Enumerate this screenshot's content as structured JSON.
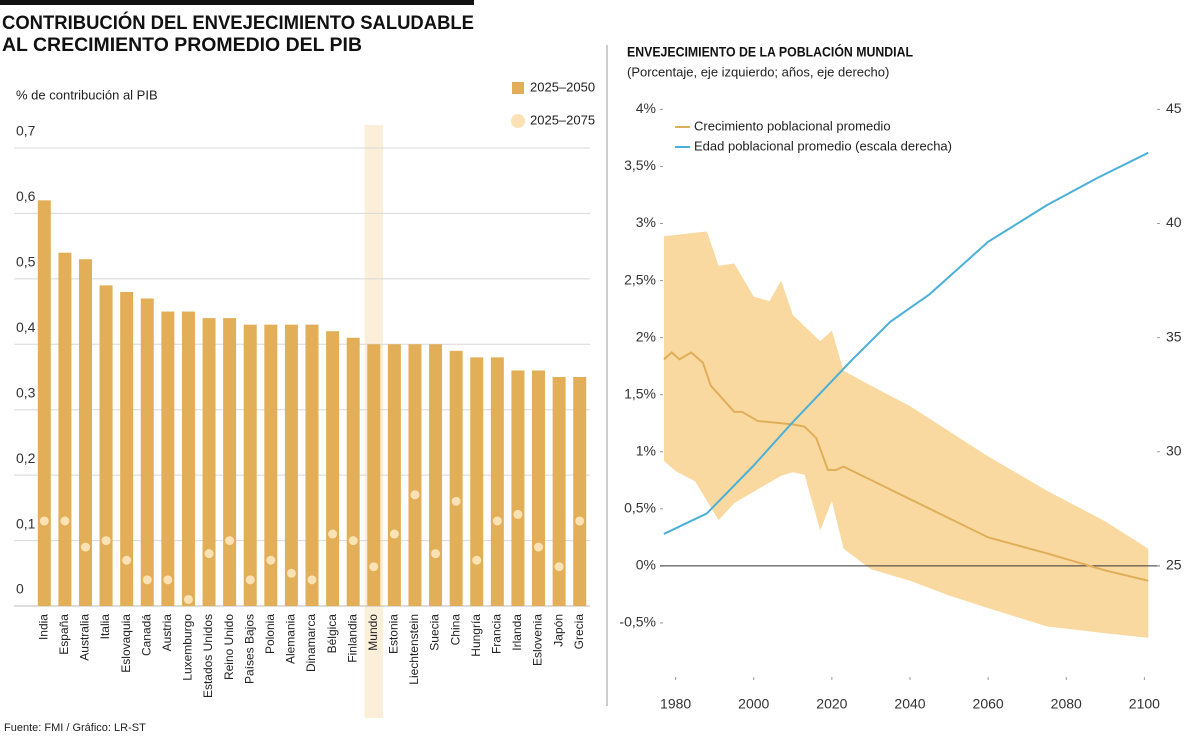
{
  "chart_data": [
    {
      "type": "bar",
      "title": [
        "CONTRIBUCIÓN DEL ENVEJECIMIENTO SALUDABLE",
        "AL CRECIMIENTO PROMEDIO DEL PIB"
      ],
      "y_label": "% de contribución al PIB",
      "categories": [
        "India",
        "España",
        "Australia",
        "Italia",
        "Eslovaquia",
        "Canadá",
        "Austria",
        "Luxemburgo",
        "Estados Unidos",
        "Reino Unido",
        "Países Bajos",
        "Polonia",
        "Alemania",
        "Dinamarca",
        "Bélgica",
        "Finlandia",
        "Mundo",
        "Estonia",
        "Liechtenstein",
        "Suecia",
        "China",
        "Hungría",
        "Francia",
        "Irlanda",
        "Eslovenia",
        "Japón",
        "Grecia"
      ],
      "series": [
        {
          "name": "2025–2050",
          "color": "#e2ae57",
          "mark": "bar",
          "values": [
            0.62,
            0.54,
            0.53,
            0.49,
            0.48,
            0.47,
            0.45,
            0.45,
            0.44,
            0.44,
            0.43,
            0.43,
            0.43,
            0.43,
            0.42,
            0.41,
            0.4,
            0.4,
            0.4,
            0.4,
            0.39,
            0.38,
            0.38,
            0.36,
            0.36,
            0.35,
            0.35
          ]
        },
        {
          "name": "2025–2075",
          "color": "#fbe2b5",
          "mark": "dot",
          "values": [
            0.13,
            0.13,
            0.09,
            0.1,
            0.07,
            0.04,
            0.04,
            0.01,
            0.08,
            0.1,
            0.04,
            0.07,
            0.05,
            0.04,
            0.11,
            0.1,
            0.06,
            0.11,
            0.17,
            0.08,
            0.16,
            0.07,
            0.13,
            0.14,
            0.09,
            0.06,
            0.13
          ]
        }
      ],
      "highlight_index": 16,
      "highlight_color": "#fcefd9",
      "ylim": [
        0,
        0.7
      ],
      "yticks": [
        0,
        {
          "value": 0.1,
          "label": "0,1"
        },
        {
          "value": 0.2,
          "label": "0,2"
        },
        {
          "value": 0.3,
          "label": "0,3"
        },
        {
          "value": 0.4,
          "label": "0,4"
        },
        {
          "value": 0.5,
          "label": "0,5"
        },
        {
          "value": 0.6,
          "label": "0,6"
        },
        {
          "value": 0.7,
          "label": "0,7"
        }
      ],
      "grid": true
    },
    {
      "type": "line",
      "title": "ENVEJECIMIENTO DE LA POBLACIÓN MUNDIAL",
      "subtitle": "(Porcentaje, eje izquierdo; años, eje derecho)",
      "xlim": [
        1976,
        2104
      ],
      "xticks": [
        1980,
        2000,
        2020,
        2040,
        2060,
        2080,
        2100
      ],
      "ylim": [
        -1,
        4.1
      ],
      "yticks": [
        {
          "value": -0.5,
          "label": "-0,5%"
        },
        {
          "value": 0,
          "label": "0%"
        },
        {
          "value": 0.5,
          "label": "0,5%"
        },
        {
          "value": 1,
          "label": "1%"
        },
        {
          "value": 1.5,
          "label": "1,5%"
        },
        {
          "value": 2,
          "label": "2%"
        },
        {
          "value": 2.5,
          "label": "2,5%"
        },
        {
          "value": 3,
          "label": "3%"
        },
        {
          "value": 3.5,
          "label": "3,5%"
        },
        {
          "value": 4,
          "label": "4%"
        }
      ],
      "y2lim": [
        20,
        45.5
      ],
      "y2ticks": [
        25,
        30,
        35,
        40,
        45
      ],
      "series": [
        {
          "name": "Crecimiento poblacional promedio",
          "color": "#dfae5b",
          "axis": "y",
          "x": [
            1977,
            1979,
            1981,
            1984,
            1987,
            1989,
            1995,
            1997,
            2001,
            2010,
            2013,
            2016,
            2019,
            2021,
            2023,
            2060,
            2075,
            2090,
            2101
          ],
          "values": [
            1.81,
            1.87,
            1.81,
            1.87,
            1.78,
            1.58,
            1.35,
            1.35,
            1.27,
            1.24,
            1.22,
            1.12,
            0.84,
            0.84,
            0.87,
            0.25,
            0.11,
            -0.04,
            -0.13
          ]
        },
        {
          "name": "Edad poblacional promedio (escala derecha)",
          "color": "#4ab0d8",
          "axis": "y2",
          "x": [
            1977,
            1988,
            2000,
            2010,
            2020,
            2025,
            2035,
            2045,
            2060,
            2075,
            2088,
            2101
          ],
          "values": [
            26.4,
            27.3,
            29.4,
            31.3,
            33.1,
            34.0,
            35.7,
            36.9,
            39.2,
            40.8,
            42.0,
            43.1
          ]
        }
      ],
      "band": {
        "color": "#fad9a0",
        "x": [
          1977,
          1980,
          1985,
          1988,
          1991,
          1995,
          2000,
          2004,
          2007,
          2010,
          2013,
          2017,
          2020,
          2023,
          2030,
          2040,
          2050,
          2060,
          2075,
          2090,
          2101
        ],
        "upper": [
          2.89,
          2.9,
          2.92,
          2.93,
          2.63,
          2.65,
          2.36,
          2.32,
          2.5,
          2.2,
          2.1,
          1.97,
          2.06,
          1.71,
          1.58,
          1.4,
          1.18,
          0.96,
          0.66,
          0.39,
          0.15
        ],
        "lower": [
          0.92,
          0.83,
          0.74,
          0.57,
          0.4,
          0.55,
          0.65,
          0.73,
          0.79,
          0.82,
          0.8,
          0.31,
          0.57,
          0.15,
          -0.03,
          -0.13,
          -0.26,
          -0.37,
          -0.53,
          -0.59,
          -0.63
        ]
      }
    }
  ],
  "source": "Fuente: FMI / Gráfico: LR-ST"
}
